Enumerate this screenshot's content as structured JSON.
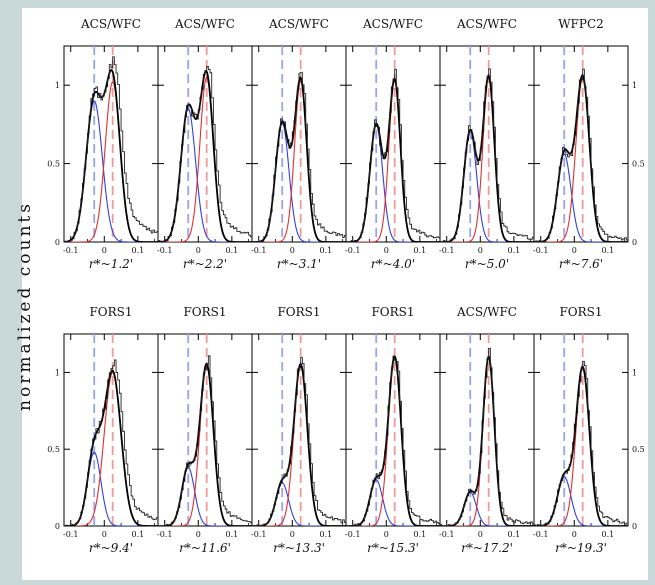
{
  "ylabel": "normalized counts",
  "colors": {
    "frame": "#c9d9d9",
    "plot_bg": "#ffffff",
    "blue": "#3040e0",
    "red": "#e03030",
    "blue_dash": "#9aa4ee",
    "red_dash": "#ee9a9a",
    "hist": "#222222"
  },
  "x_ticks": [
    "-0.1",
    "0",
    "0.1"
  ],
  "y_ticks": [
    "0",
    "0.5",
    "1"
  ],
  "chart_data": {
    "type": "line",
    "xlim": [
      -0.12,
      0.16
    ],
    "ylim": [
      0,
      1.25
    ],
    "x_ticks": [
      -0.1,
      0,
      0.1
    ],
    "y_ticks": [
      0,
      0.5,
      1
    ],
    "grid": false,
    "panels": [
      {
        "instrument": "ACS/WFC",
        "radius": "r*~1.2'",
        "blue": {
          "mu": -0.03,
          "amp": 0.9,
          "sigma": 0.024
        },
        "red": {
          "mu": 0.025,
          "amp": 1.02,
          "sigma": 0.022
        },
        "tail": 0.38
      },
      {
        "instrument": "ACS/WFC",
        "radius": "r*~2.2'",
        "blue": {
          "mu": -0.03,
          "amp": 0.85,
          "sigma": 0.022
        },
        "red": {
          "mu": 0.025,
          "amp": 1.05,
          "sigma": 0.02
        },
        "tail": 0.3
      },
      {
        "instrument": "ACS/WFC",
        "radius": "r*~3.1'",
        "blue": {
          "mu": -0.03,
          "amp": 0.76,
          "sigma": 0.02
        },
        "red": {
          "mu": 0.025,
          "amp": 1.03,
          "sigma": 0.018
        },
        "tail": 0.22
      },
      {
        "instrument": "ACS/WFC",
        "radius": "r*~4.0'",
        "blue": {
          "mu": -0.03,
          "amp": 0.75,
          "sigma": 0.019
        },
        "red": {
          "mu": 0.025,
          "amp": 1.03,
          "sigma": 0.017
        },
        "tail": 0.18
      },
      {
        "instrument": "ACS/WFC",
        "radius": "r*~5.0'",
        "blue": {
          "mu": -0.03,
          "amp": 0.71,
          "sigma": 0.019
        },
        "red": {
          "mu": 0.025,
          "amp": 1.05,
          "sigma": 0.017
        },
        "tail": 0.16
      },
      {
        "instrument": "WFPC2",
        "radius": "r*~7.6'",
        "blue": {
          "mu": -0.03,
          "amp": 0.56,
          "sigma": 0.02
        },
        "red": {
          "mu": 0.025,
          "amp": 1.05,
          "sigma": 0.02
        },
        "tail": 0.12
      },
      {
        "instrument": "FORS1",
        "radius": "r*~9.4'",
        "blue": {
          "mu": -0.03,
          "amp": 0.48,
          "sigma": 0.02
        },
        "red": {
          "mu": 0.025,
          "amp": 1.0,
          "sigma": 0.025
        },
        "tail": 0.3
      },
      {
        "instrument": "FORS1",
        "radius": "r*~11.6'",
        "blue": {
          "mu": -0.03,
          "amp": 0.38,
          "sigma": 0.019
        },
        "red": {
          "mu": 0.025,
          "amp": 1.05,
          "sigma": 0.02
        },
        "tail": 0.2
      },
      {
        "instrument": "FORS1",
        "radius": "r*~13.3'",
        "blue": {
          "mu": -0.03,
          "amp": 0.28,
          "sigma": 0.019
        },
        "red": {
          "mu": 0.025,
          "amp": 1.05,
          "sigma": 0.02
        },
        "tail": 0.18
      },
      {
        "instrument": "FORS1",
        "radius": "r*~15.3'",
        "blue": {
          "mu": -0.03,
          "amp": 0.3,
          "sigma": 0.019
        },
        "red": {
          "mu": 0.025,
          "amp": 1.1,
          "sigma": 0.019
        },
        "tail": 0.15
      },
      {
        "instrument": "ACS/WFC",
        "radius": "r*~17.2'",
        "blue": {
          "mu": -0.03,
          "amp": 0.22,
          "sigma": 0.018
        },
        "red": {
          "mu": 0.025,
          "amp": 1.1,
          "sigma": 0.017
        },
        "tail": 0.1
      },
      {
        "instrument": "FORS1",
        "radius": "r*~19.3'",
        "blue": {
          "mu": -0.03,
          "amp": 0.32,
          "sigma": 0.02
        },
        "red": {
          "mu": 0.025,
          "amp": 1.03,
          "sigma": 0.02
        },
        "tail": 0.14
      }
    ]
  }
}
